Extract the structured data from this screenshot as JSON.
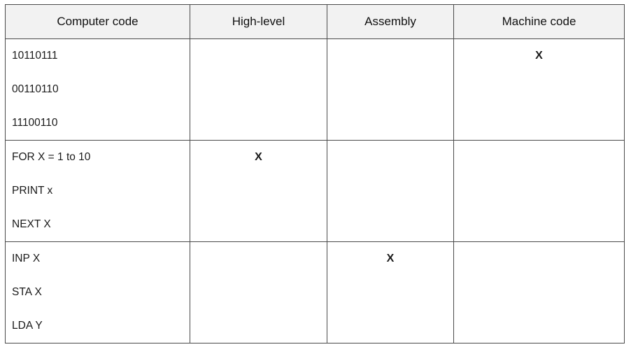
{
  "headers": [
    "Computer code",
    "High-level",
    "Assembly",
    "Machine code"
  ],
  "rows": [
    {
      "code": [
        "10110111",
        "00110110",
        "11100110"
      ],
      "high_level": "",
      "assembly": "",
      "machine_code": "X"
    },
    {
      "code": [
        "FOR X = 1 to 10",
        "PRINT x",
        "NEXT X"
      ],
      "high_level": "X",
      "assembly": "",
      "machine_code": ""
    },
    {
      "code": [
        "INP X",
        "STA X",
        "LDA Y"
      ],
      "high_level": "",
      "assembly": "X",
      "machine_code": ""
    }
  ]
}
